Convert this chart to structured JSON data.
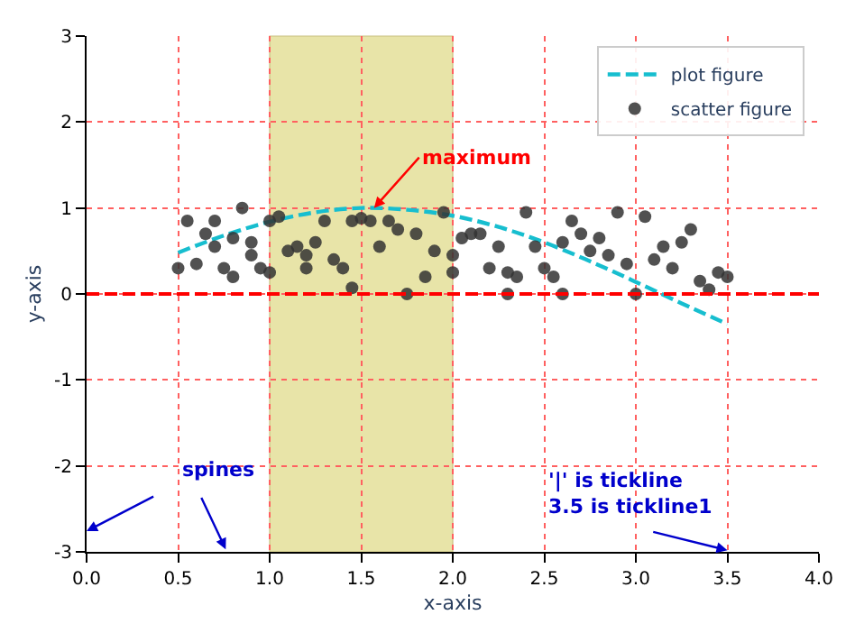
{
  "chart_data": {
    "type": "scatter",
    "xlabel": "x-axis",
    "ylabel": "y-axis",
    "xlim": [
      0,
      4
    ],
    "ylim": [
      -3,
      3
    ],
    "xticks": [
      {
        "value": 0,
        "label": "0.0"
      },
      {
        "value": 0.5,
        "label": "0.5"
      },
      {
        "value": 1,
        "label": "1.0"
      },
      {
        "value": 1.5,
        "label": "1.5"
      },
      {
        "value": 2,
        "label": "2.0"
      },
      {
        "value": 2.5,
        "label": "2.5"
      },
      {
        "value": 3,
        "label": "3.0"
      },
      {
        "value": 3.5,
        "label": "3.5"
      },
      {
        "value": 4,
        "label": "4.0"
      }
    ],
    "yticks": [
      -3,
      -2,
      -1,
      0,
      1,
      2,
      3
    ],
    "grid": true,
    "legend": "top right",
    "series": [
      {
        "name": "plot figure",
        "type": "line",
        "color": "#17becf",
        "line_style": "dashed",
        "marker": "none",
        "x": [
          0.5,
          0.75,
          1.0,
          1.25,
          1.5,
          1.75,
          2.0,
          2.25,
          2.5,
          2.75,
          3.0,
          3.25,
          3.5
        ],
        "values": [
          0.48,
          0.68,
          0.84,
          0.95,
          1.0,
          0.98,
          0.91,
          0.78,
          0.6,
          0.38,
          0.14,
          -0.11,
          -0.35
        ]
      },
      {
        "name": "scatter figure",
        "color": "#333333",
        "marker": "circle",
        "x": [
          0.5,
          0.55,
          0.6,
          0.65,
          0.7,
          0.7,
          0.75,
          0.8,
          0.8,
          0.85,
          0.9,
          0.9,
          0.95,
          1.0,
          1.0,
          1.05,
          1.1,
          1.15,
          1.2,
          1.2,
          1.25,
          1.3,
          1.35,
          1.4,
          1.45,
          1.45,
          1.5,
          1.55,
          1.6,
          1.65,
          1.7,
          1.75,
          1.8,
          1.85,
          1.9,
          1.95,
          2.0,
          2.0,
          2.05,
          2.1,
          2.15,
          2.2,
          2.25,
          2.3,
          2.3,
          2.35,
          2.4,
          2.45,
          2.5,
          2.55,
          2.6,
          2.6,
          2.65,
          2.7,
          2.75,
          2.8,
          2.85,
          2.9,
          2.95,
          3.0,
          3.05,
          3.1,
          3.15,
          3.2,
          3.25,
          3.3,
          3.35,
          3.4,
          3.45,
          3.5
        ],
        "values": [
          0.3,
          0.85,
          0.35,
          0.7,
          0.85,
          0.55,
          0.3,
          0.2,
          0.65,
          1.0,
          0.6,
          0.45,
          0.3,
          0.25,
          0.85,
          0.9,
          0.5,
          0.55,
          0.45,
          0.3,
          0.6,
          0.85,
          0.4,
          0.3,
          0.07,
          0.85,
          0.88,
          0.85,
          0.55,
          0.85,
          0.75,
          0.0,
          0.7,
          0.2,
          0.5,
          0.95,
          0.45,
          0.25,
          0.65,
          0.7,
          0.7,
          0.3,
          0.55,
          0.0,
          0.25,
          0.2,
          0.95,
          0.55,
          0.3,
          0.2,
          0.0,
          0.6,
          0.85,
          0.7,
          0.5,
          0.65,
          0.45,
          0.95,
          0.35,
          0.0,
          0.9,
          0.4,
          0.55,
          0.3,
          0.6,
          0.75,
          0.15,
          0.05,
          0.25,
          0.2
        ]
      }
    ],
    "ref_lines": [
      {
        "axis": "y",
        "value": 0,
        "color": "#ff0000",
        "line_style": "dashed"
      }
    ],
    "bands": [
      {
        "axis": "x",
        "from": 1,
        "to": 2,
        "color": "#e8e4a8"
      }
    ],
    "annotations": [
      {
        "text": "maximum",
        "x": 1.57,
        "y": 1.0
      },
      "spines",
      "'|' is tickline\n3.5 is tickline1"
    ]
  }
}
